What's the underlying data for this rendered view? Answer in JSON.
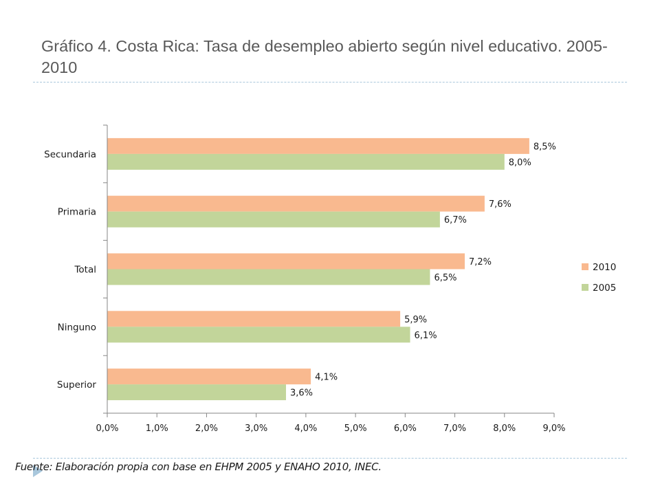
{
  "slide": {
    "title": "Gráfico 4. Costa Rica: Tasa de desempleo abierto según nivel educativo. 2005-2010",
    "source": "Fuente: Elaboración propia con base en EHPM 2005 y ENAHO 2010, INEC."
  },
  "colors": {
    "series_2010": "#f9b98f",
    "series_2005": "#c2d59a",
    "axis": "#868686",
    "rule": "#a9c7dc"
  },
  "chart_data": {
    "type": "bar",
    "orientation": "horizontal",
    "categories": [
      "Secundaria",
      "Primaria",
      "Total",
      "Ninguno",
      "Superior"
    ],
    "series": [
      {
        "name": "2010",
        "values": [
          8.5,
          7.6,
          7.2,
          5.9,
          4.1
        ],
        "labels": [
          "8,5%",
          "7,6%",
          "7,2%",
          "5,9%",
          "4,1%"
        ],
        "color": "#f9b98f"
      },
      {
        "name": "2005",
        "values": [
          8.0,
          6.7,
          6.5,
          6.1,
          3.6
        ],
        "labels": [
          "8,0%",
          "6,7%",
          "6,5%",
          "6,1%",
          "3,6%"
        ],
        "color": "#c2d59a"
      }
    ],
    "xlim": [
      0,
      9
    ],
    "xticks": [
      "0,0%",
      "1,0%",
      "2,0%",
      "3,0%",
      "4,0%",
      "5,0%",
      "6,0%",
      "7,0%",
      "8,0%",
      "9,0%"
    ],
    "xlabel": "",
    "ylabel": "",
    "grid": false,
    "legend_position": "right"
  }
}
